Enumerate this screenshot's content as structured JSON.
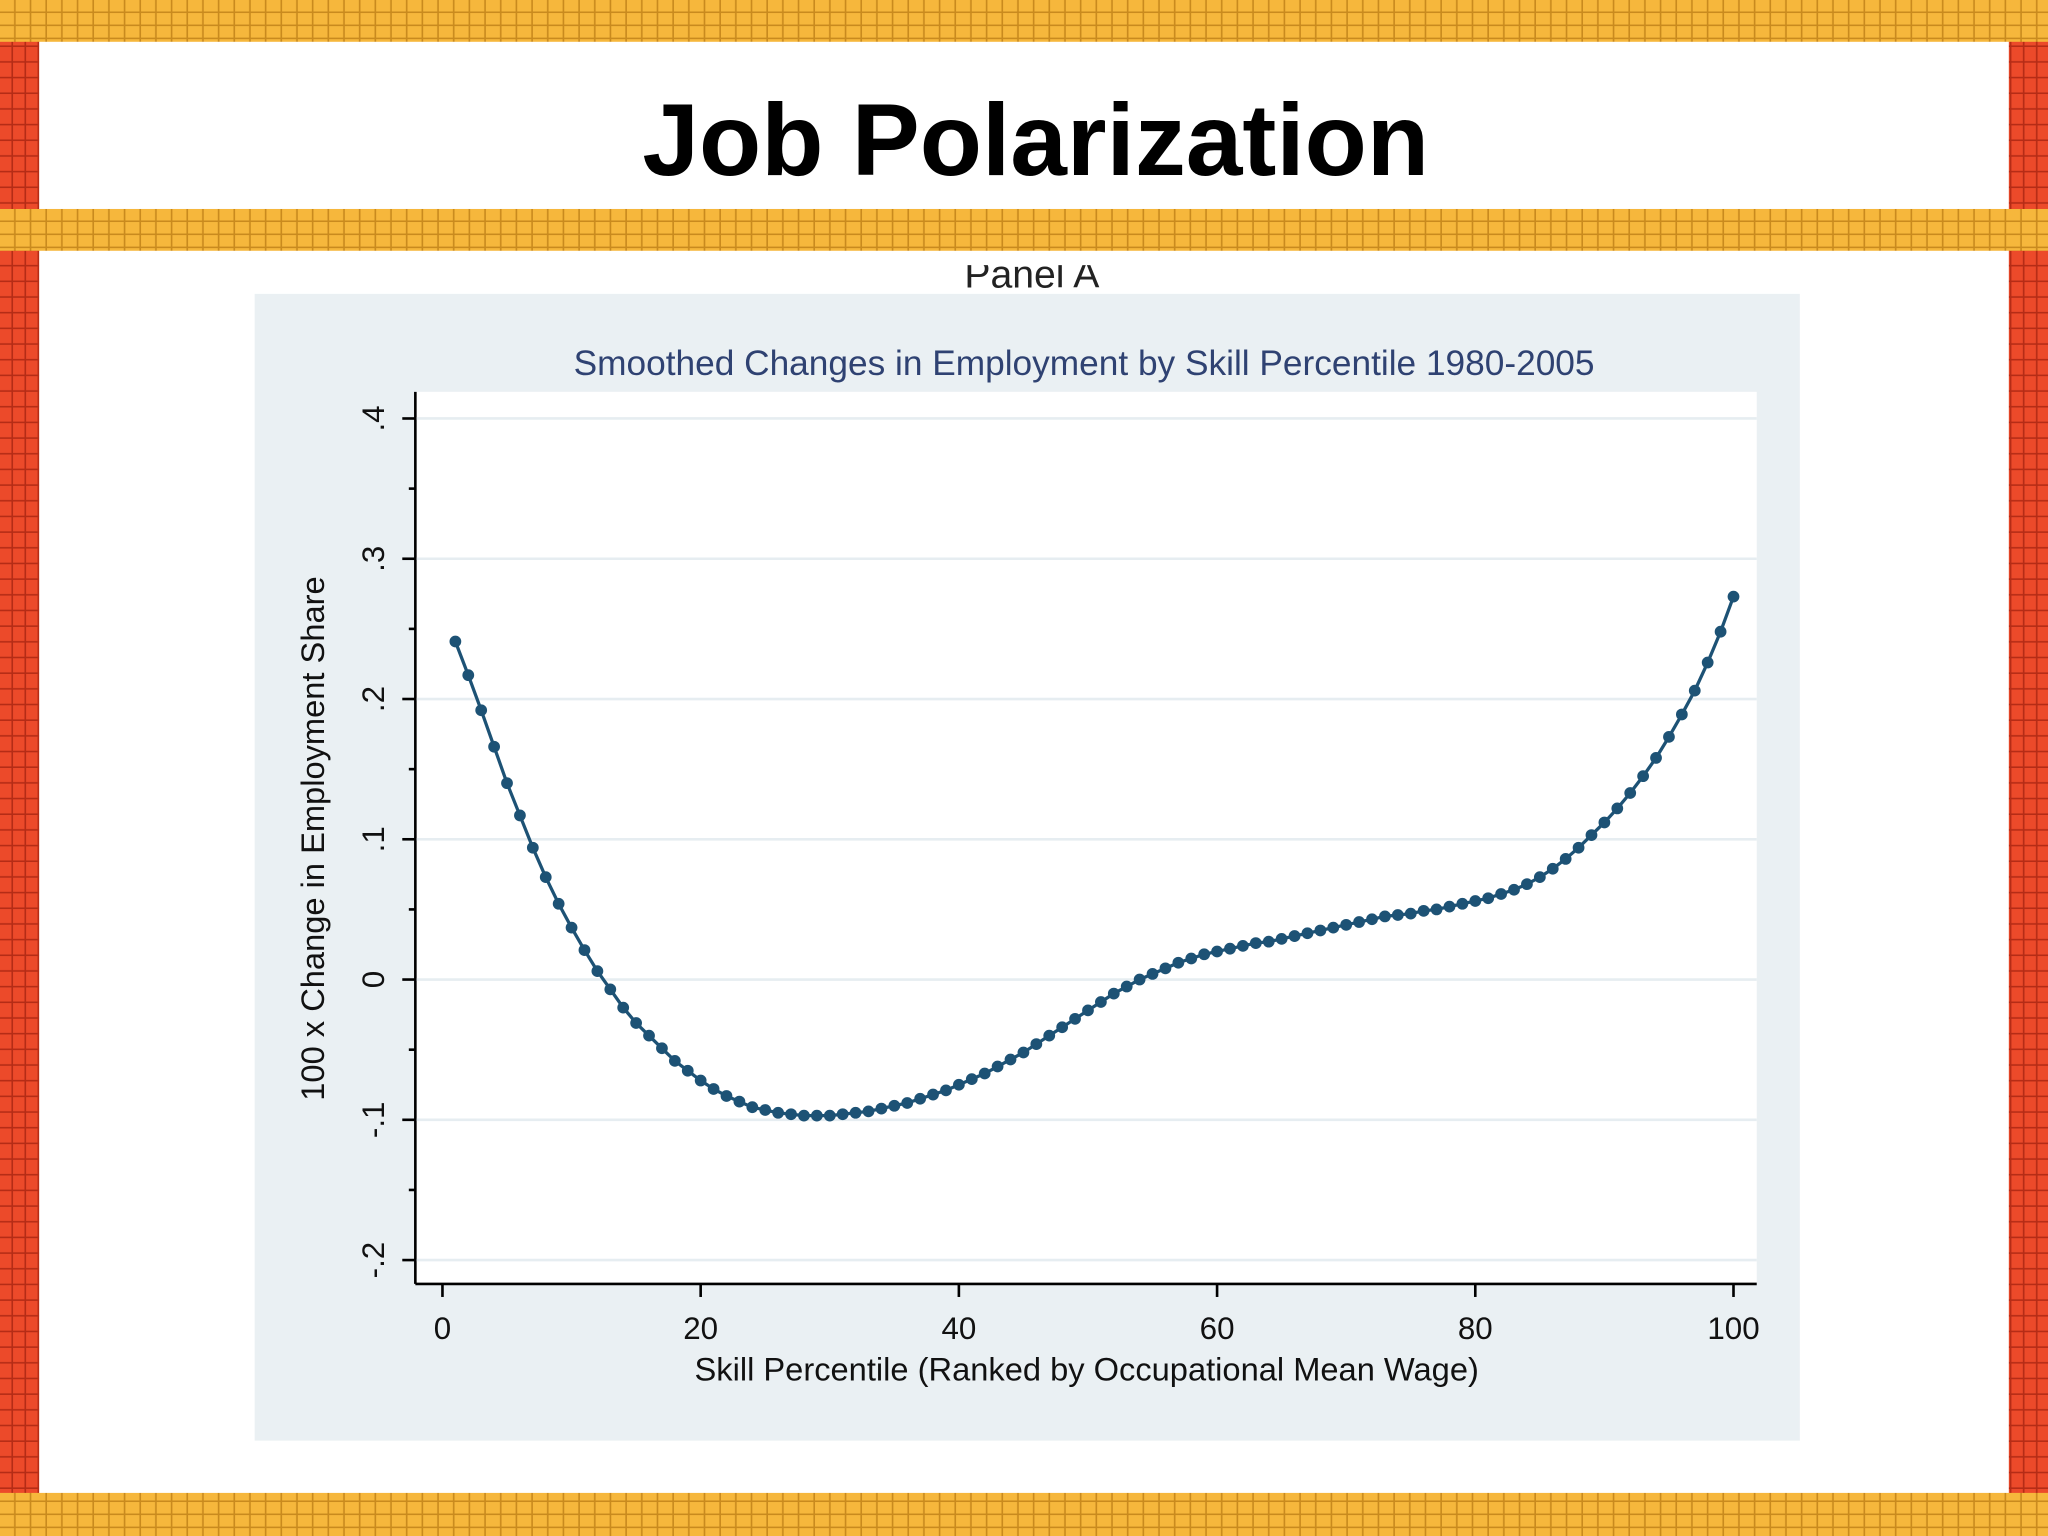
{
  "slide_title": "Job Polarization",
  "panel_label": "Panel A",
  "chart_data": {
    "type": "line",
    "title": "Smoothed Changes in Employment by Skill Percentile 1980-2005",
    "xlabel": "Skill Percentile (Ranked by Occupational Mean Wage)",
    "ylabel": "100 x Change in Employment Share",
    "x": [
      1,
      2,
      3,
      4,
      5,
      6,
      7,
      8,
      9,
      10,
      11,
      12,
      13,
      14,
      15,
      16,
      17,
      18,
      19,
      20,
      21,
      22,
      23,
      24,
      25,
      26,
      27,
      28,
      29,
      30,
      31,
      32,
      33,
      34,
      35,
      36,
      37,
      38,
      39,
      40,
      41,
      42,
      43,
      44,
      45,
      46,
      47,
      48,
      49,
      50,
      51,
      52,
      53,
      54,
      55,
      56,
      57,
      58,
      59,
      60,
      61,
      62,
      63,
      64,
      65,
      66,
      67,
      68,
      69,
      70,
      71,
      72,
      73,
      74,
      75,
      76,
      77,
      78,
      79,
      80,
      81,
      82,
      83,
      84,
      85,
      86,
      87,
      88,
      89,
      90,
      91,
      92,
      93,
      94,
      95,
      96,
      97,
      98,
      99,
      100
    ],
    "series": [
      {
        "color": "#1d5275",
        "values": [
          0.241,
          0.217,
          0.192,
          0.166,
          0.14,
          0.117,
          0.094,
          0.073,
          0.054,
          0.037,
          0.021,
          0.006,
          -0.007,
          -0.02,
          -0.031,
          -0.04,
          -0.049,
          -0.058,
          -0.065,
          -0.072,
          -0.078,
          -0.083,
          -0.087,
          -0.091,
          -0.093,
          -0.095,
          -0.096,
          -0.097,
          -0.097,
          -0.097,
          -0.096,
          -0.095,
          -0.094,
          -0.092,
          -0.09,
          -0.088,
          -0.085,
          -0.082,
          -0.079,
          -0.075,
          -0.071,
          -0.067,
          -0.062,
          -0.057,
          -0.052,
          -0.046,
          -0.04,
          -0.034,
          -0.028,
          -0.022,
          -0.016,
          -0.01,
          -0.005,
          0.0,
          0.004,
          0.008,
          0.012,
          0.015,
          0.018,
          0.02,
          0.022,
          0.024,
          0.026,
          0.027,
          0.029,
          0.031,
          0.033,
          0.035,
          0.037,
          0.039,
          0.041,
          0.043,
          0.045,
          0.046,
          0.047,
          0.049,
          0.05,
          0.052,
          0.054,
          0.056,
          0.058,
          0.061,
          0.064,
          0.068,
          0.073,
          0.079,
          0.086,
          0.094,
          0.103,
          0.112,
          0.122,
          0.133,
          0.145,
          0.158,
          0.173,
          0.189,
          0.206,
          0.226,
          0.248,
          0.273
        ]
      }
    ],
    "xlim": [
      -2.1,
      101.8
    ],
    "ylim": [
      -0.217,
      0.419
    ],
    "xticks": [
      0,
      20,
      40,
      60,
      80,
      100
    ],
    "yticks": [
      {
        "value": -0.2,
        "label": "-.2"
      },
      {
        "value": -0.1,
        "label": "-.1"
      },
      0,
      {
        "value": 0.1,
        "label": ".1"
      },
      {
        "value": 0.2,
        "label": ".2"
      },
      {
        "value": 0.3,
        "label": ".3"
      },
      {
        "value": 0.4,
        "label": ".4"
      }
    ],
    "y_minor_ticks": [
      -0.15,
      -0.05,
      0.05,
      0.15,
      0.25,
      0.35
    ],
    "grid": true
  }
}
